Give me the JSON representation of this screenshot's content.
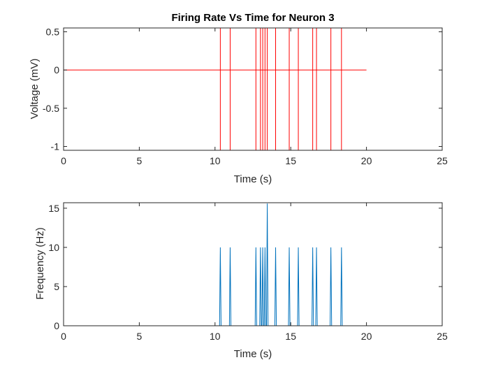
{
  "chart_data": [
    {
      "type": "line",
      "title": "Firing Rate Vs Time for Neuron 3",
      "xlabel": "Time (s)",
      "ylabel": "Voltage (mV)",
      "xlim": [
        0,
        25
      ],
      "ylim": [
        -1.05,
        0.55
      ],
      "xticks": [
        "0",
        "5",
        "10",
        "15",
        "20",
        "25"
      ],
      "yticks": [
        "-1",
        "-0.5",
        "0",
        "0.5"
      ],
      "grid": false,
      "color": "#ff0000",
      "baseline": {
        "x": [
          0,
          20
        ],
        "y": 0
      },
      "spike_times": [
        10.35,
        11.0,
        12.7,
        13.0,
        13.15,
        13.3,
        13.45,
        14.0,
        14.9,
        15.5,
        16.45,
        16.7,
        17.65,
        18.35
      ],
      "spike_range": [
        -1.05,
        0.55
      ]
    },
    {
      "type": "line",
      "title": "",
      "xlabel": "Time (s)",
      "ylabel": "Frequency (Hz)",
      "xlim": [
        0,
        25
      ],
      "ylim": [
        0,
        15.7
      ],
      "xticks": [
        "0",
        "5",
        "10",
        "15",
        "20",
        "25"
      ],
      "yticks": [
        "0",
        "5",
        "10",
        "15"
      ],
      "grid": false,
      "color": "#0072bd",
      "x_end": 20,
      "peak_width": 0.1,
      "peaks": [
        {
          "x": 10.35,
          "y": 10
        },
        {
          "x": 11.0,
          "y": 10
        },
        {
          "x": 12.7,
          "y": 10
        },
        {
          "x": 13.0,
          "y": 10
        },
        {
          "x": 13.15,
          "y": 10
        },
        {
          "x": 13.3,
          "y": 10
        },
        {
          "x": 13.45,
          "y": 15.6
        },
        {
          "x": 14.0,
          "y": 10
        },
        {
          "x": 14.9,
          "y": 10
        },
        {
          "x": 15.5,
          "y": 10
        },
        {
          "x": 16.45,
          "y": 10
        },
        {
          "x": 16.7,
          "y": 10
        },
        {
          "x": 17.65,
          "y": 10
        },
        {
          "x": 18.35,
          "y": 10
        }
      ]
    }
  ]
}
